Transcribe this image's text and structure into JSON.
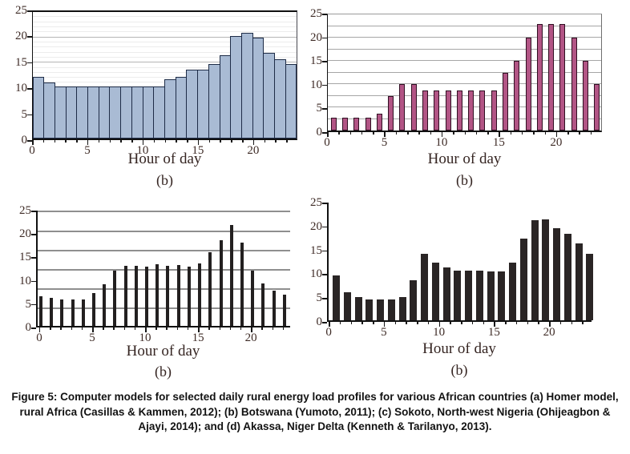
{
  "figure": {
    "caption": "Figure 5: Computer models for selected daily rural energy load profiles for various African countries (a) Homer model, rural Africa (Casillas & Kammen, 2012); (b) Botswana (Yumoto, 2011); (c) Sokoto, North-west Nigeria (Ohijeagbon & Ajayi, 2014); and (d) Akassa, Niger Delta (Kenneth & Tarilanyo, 2013).",
    "axis_text_color": "#3e2b26"
  },
  "chart_data": [
    {
      "id": "a",
      "panel": "top-left",
      "type": "bar",
      "bar_style": "histogram",
      "xlabel": "Hour of day",
      "panel_label": "(b)",
      "hours": [
        0,
        1,
        2,
        3,
        4,
        5,
        6,
        7,
        8,
        9,
        10,
        11,
        12,
        13,
        14,
        15,
        16,
        17,
        18,
        19,
        20,
        21,
        22,
        23
      ],
      "values": [
        12.2,
        11,
        10.3,
        10.3,
        10.3,
        10.3,
        10.3,
        10.3,
        10.3,
        10.3,
        10.3,
        10.3,
        11.7,
        12.2,
        13.6,
        13.6,
        14.7,
        16.5,
        20.2,
        20.9,
        20,
        17,
        15.6,
        14.7
      ],
      "ylim": [
        0,
        25
      ],
      "yticks": [
        0,
        5,
        10,
        15,
        20,
        25
      ],
      "xticks": [
        0,
        5,
        10,
        15,
        20
      ],
      "grid": {
        "minor_step": 1,
        "major_step": 5
      },
      "colors": {
        "bar_fill": "#a9bbd4",
        "bar_edge": "#1e2c47",
        "grid_minor": "#ececec",
        "grid_major": "#b5b5b5"
      }
    },
    {
      "id": "b",
      "panel": "top-right",
      "type": "bar",
      "bar_style": "column",
      "xlabel": "Hour of day",
      "panel_label": "(b)",
      "hours": [
        0,
        1,
        2,
        3,
        4,
        5,
        6,
        7,
        8,
        9,
        10,
        11,
        12,
        13,
        14,
        15,
        16,
        17,
        18,
        19,
        20,
        21,
        22,
        23
      ],
      "values": [
        2.7,
        2.7,
        2.7,
        2.7,
        3.6,
        7.5,
        10,
        10,
        8.6,
        8.6,
        8.6,
        8.6,
        8.6,
        8.6,
        8.6,
        12.4,
        15,
        20,
        23,
        23,
        23,
        20,
        15,
        10
      ],
      "ylim": [
        0,
        25
      ],
      "yticks": [
        0,
        5,
        10,
        15,
        20,
        25
      ],
      "xticks": [
        0,
        5,
        10,
        15,
        20
      ],
      "grid": {
        "step": 2.5
      },
      "colors": {
        "bar_fill": "#b25585",
        "bar_edge": "#300f22",
        "grid_major": "#a6a6a6"
      }
    },
    {
      "id": "c",
      "panel": "bottom-left",
      "type": "bar",
      "bar_style": "column",
      "xlabel": "Hour of day",
      "panel_label": "(b)",
      "hours": [
        0,
        1,
        2,
        3,
        4,
        5,
        6,
        7,
        8,
        9,
        10,
        11,
        12,
        13,
        14,
        15,
        16,
        17,
        18,
        19,
        20,
        21,
        22,
        23
      ],
      "values": [
        6.4,
        6.1,
        5.7,
        5.7,
        5.7,
        7.2,
        9,
        12,
        13,
        13,
        12.8,
        13.4,
        13,
        13.2,
        12.8,
        13.6,
        16,
        18.5,
        21.8,
        18,
        12,
        9.2,
        7.6,
        6.8
      ],
      "ylim": [
        0,
        25
      ],
      "yticks": [
        0,
        5,
        10,
        15,
        20,
        25
      ],
      "xticks": [
        0,
        5,
        10,
        15,
        20
      ],
      "grid": {
        "values": [
          3.7,
          7.8,
          12,
          16.2,
          20.4,
          24.6
        ],
        "thick": true
      },
      "colors": {
        "bar_fill": "#232020",
        "grid_major": "#8f8f8f"
      }
    },
    {
      "id": "d",
      "panel": "bottom-right",
      "type": "bar",
      "bar_style": "column",
      "xlabel": "Hour of day",
      "panel_label": "(b)",
      "hours": [
        0,
        1,
        2,
        3,
        4,
        5,
        6,
        7,
        8,
        9,
        10,
        11,
        12,
        13,
        14,
        15,
        16,
        17,
        18,
        19,
        20,
        21,
        22,
        23
      ],
      "values": [
        9.5,
        5.9,
        4.9,
        4.4,
        4.4,
        4.4,
        4.9,
        8.5,
        14.1,
        12.2,
        11.2,
        10.5,
        10.5,
        10.6,
        10.3,
        10.3,
        12.2,
        17.4,
        21.2,
        21.5,
        19.6,
        18.3,
        16.3,
        14.1
      ],
      "ylim": [
        0,
        25
      ],
      "yticks": [
        0,
        5,
        10,
        15,
        20,
        25
      ],
      "xticks": [
        0,
        5,
        10,
        15,
        20
      ],
      "grid": null,
      "colors": {
        "bar_fill": "#2a2525"
      }
    }
  ]
}
